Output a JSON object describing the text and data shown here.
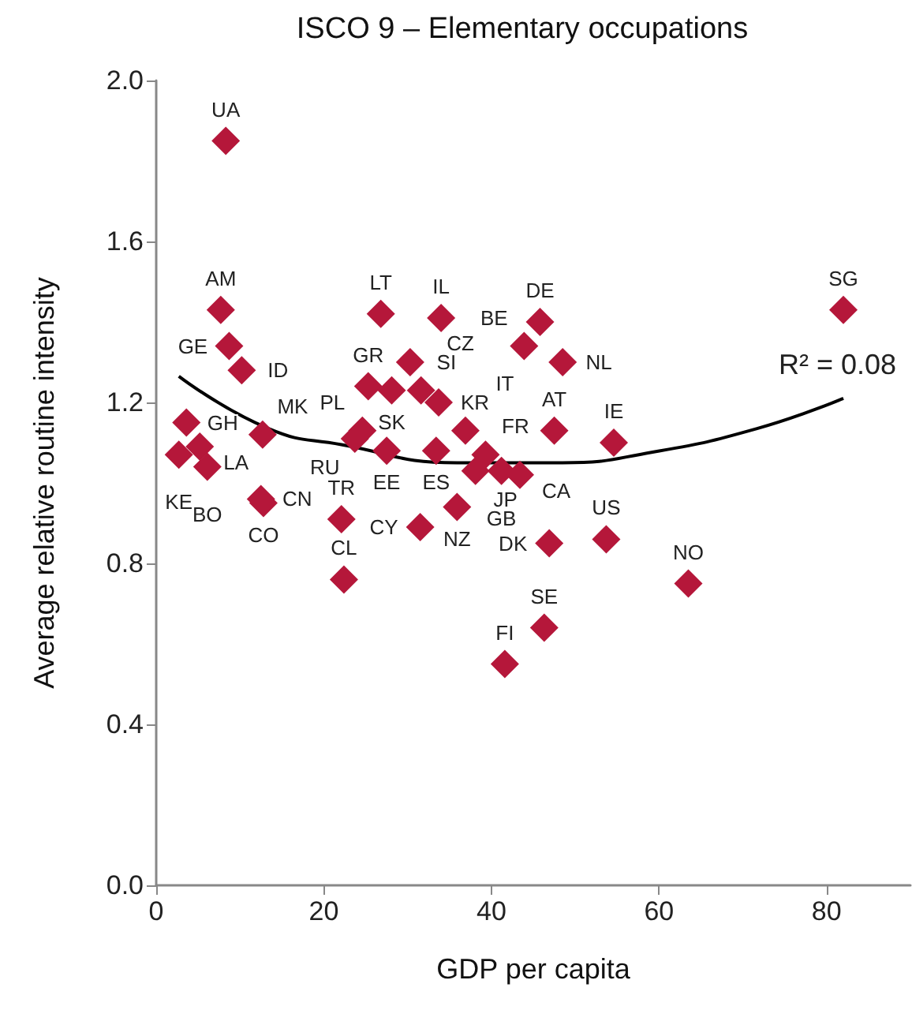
{
  "chart_data": {
    "type": "scatter",
    "title": "ISCO 9 – Elementary occupations",
    "xlabel": "GDP per capita",
    "ylabel": "Average relative routine intensity",
    "xlim": [
      0,
      90
    ],
    "xticks": [
      0,
      20,
      40,
      60,
      80
    ],
    "ylim": [
      0,
      2
    ],
    "yticks": [
      {
        "value": 0,
        "label": "0.0"
      },
      0.4,
      0.8,
      1.2,
      1.6,
      {
        "value": 2,
        "label": "2.0"
      }
    ],
    "grid": false,
    "annotations": [
      "R² = 0.08"
    ],
    "series": [
      {
        "color": "#b5173a",
        "marker": "diamond",
        "x": [
          8.3,
          7.7,
          8.7,
          10.2,
          3.6,
          2.7,
          5.2,
          6.1,
          12.7,
          12.5,
          12.8,
          22.1,
          22.4,
          26.8,
          34.0,
          30.3,
          25.3,
          28.1,
          31.6,
          33.7,
          36.9,
          24.6,
          23.7,
          27.5,
          33.4,
          39.3,
          38.1,
          41.2,
          43.4,
          47.5,
          54.6,
          45.8,
          43.9,
          48.5,
          46.9,
          53.7,
          63.5,
          46.3,
          41.6,
          82.0,
          35.9,
          31.5
        ],
        "values": [
          1.85,
          1.43,
          1.34,
          1.28,
          1.15,
          1.07,
          1.09,
          1.04,
          1.12,
          0.96,
          0.95,
          0.91,
          0.76,
          1.42,
          1.41,
          1.3,
          1.24,
          1.23,
          1.23,
          1.2,
          1.13,
          1.13,
          1.11,
          1.08,
          1.08,
          1.07,
          1.03,
          1.03,
          1.02,
          1.13,
          1.1,
          1.4,
          1.34,
          1.3,
          0.85,
          0.86,
          0.75,
          0.64,
          0.55,
          1.43,
          0.94,
          0.89
        ],
        "value_labels": [
          "UA",
          "AM",
          "GE",
          "ID",
          "GH",
          "KE",
          "LA",
          "BO",
          "MK",
          "CN",
          "CO",
          "TR",
          "CL",
          "LT",
          "IL",
          "SI",
          "GR",
          "SK",
          "CZ",
          "KR",
          "IT",
          "PL",
          "RU",
          "EE",
          "ES",
          "FR",
          "JP",
          "GB",
          "CA",
          "AT",
          "IE",
          "DE",
          "BE",
          "NL",
          "DK",
          "US",
          "NO",
          "SE",
          "FI",
          "SG",
          "NZ",
          "CY"
        ]
      },
      {
        "type": "line",
        "color": "#000000",
        "marker": "none",
        "line_style": "solid",
        "x": [
          2.7,
          13.4,
          22.1,
          35.9,
          48.5,
          59.1,
          71.7,
          82.0
        ],
        "values": [
          1.265,
          1.135,
          1.095,
          1.05,
          1.05,
          1.076,
          1.135,
          1.21
        ]
      }
    ]
  }
}
